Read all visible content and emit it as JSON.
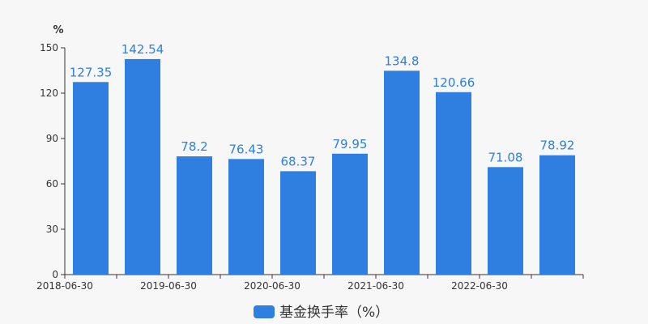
{
  "chart_data": {
    "type": "bar",
    "y_unit": "%",
    "ylim": [
      0,
      150
    ],
    "yticks": [
      0,
      30,
      60,
      90,
      120,
      150
    ],
    "x_tick_labels": [
      "2018-06-30",
      "2019-06-30",
      "2020-06-30",
      "2021-06-30",
      "2022-06-30"
    ],
    "values": [
      127.35,
      142.54,
      78.2,
      76.43,
      68.37,
      79.95,
      134.8,
      120.66,
      71.08,
      78.92
    ],
    "value_labels": [
      "127.35",
      "142.54",
      "78.2",
      "76.43",
      "68.37",
      "79.95",
      "134.8",
      "120.66",
      "71.08",
      "78.92"
    ],
    "series": [
      {
        "name": "基金换手率（%）",
        "color": "#2e7fdf"
      }
    ],
    "grid": false,
    "legend_position": "bottom-center"
  }
}
